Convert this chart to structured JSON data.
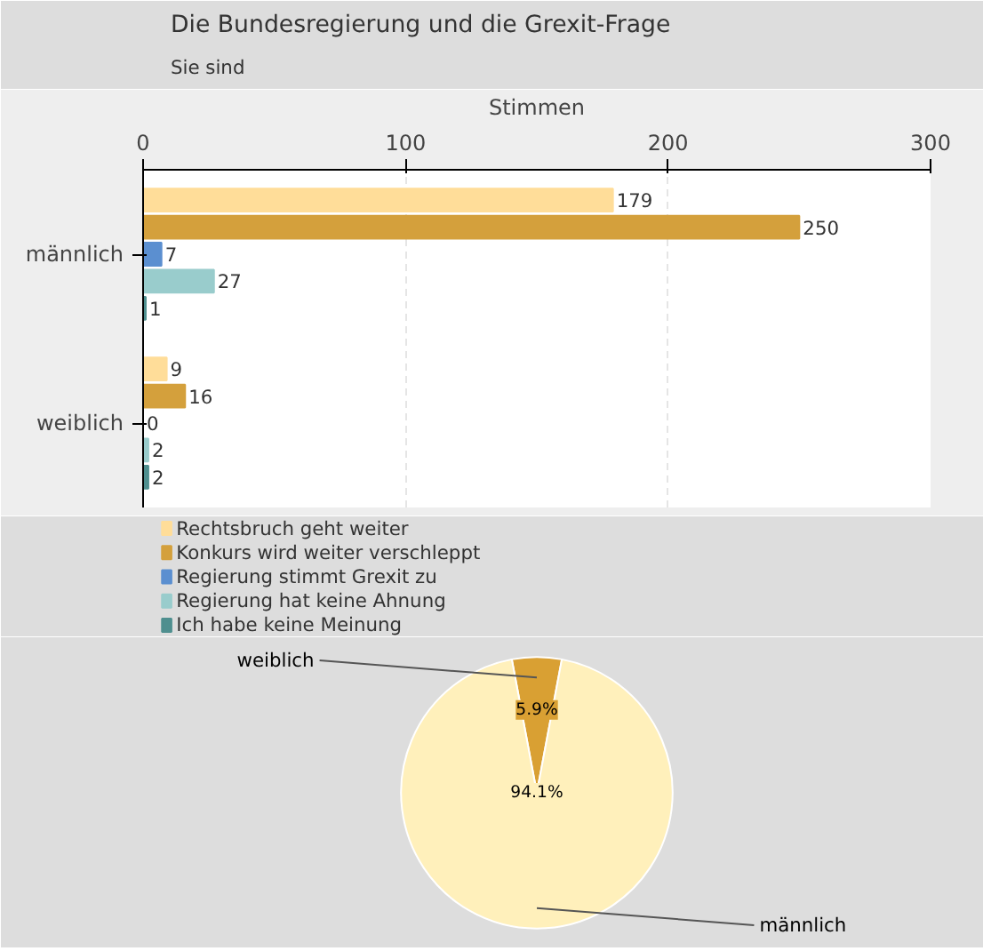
{
  "chart_data": [
    {
      "type": "bar",
      "title": "Die Bundesregierung und die Grexit-Frage",
      "subtitle": "Sie sind",
      "orientation": "horizontal",
      "xlabel": "Stimmen",
      "categories": [
        "männlich",
        "weiblich"
      ],
      "xlim": [
        0,
        300
      ],
      "xticks": [
        0,
        100,
        200,
        300
      ],
      "grid": "x",
      "legend": "bottom",
      "data_labels": true,
      "series": [
        {
          "name": "Rechtsbruch geht weiter",
          "color": "#ffdd99",
          "values": [
            179,
            9
          ]
        },
        {
          "name": "Konkurs wird weiter verschleppt",
          "color": "#d4a03c",
          "values": [
            250,
            16
          ]
        },
        {
          "name": "Regierung stimmt Grexit zu",
          "color": "#5b8fd0",
          "values": [
            7,
            0
          ]
        },
        {
          "name": "Regierung hat keine Ahnung",
          "color": "#99cccc",
          "values": [
            27,
            2
          ]
        },
        {
          "name": "Ich habe keine Meinung",
          "color": "#4f8f8f",
          "values": [
            1,
            2
          ]
        }
      ]
    },
    {
      "type": "pie",
      "categories": [
        "weiblich",
        "männlich"
      ],
      "values": [
        5.9,
        94.1
      ],
      "colors": [
        "#d9a033",
        "#fff0bb"
      ],
      "value_labels": [
        "5.9%",
        "94.1%"
      ]
    }
  ]
}
